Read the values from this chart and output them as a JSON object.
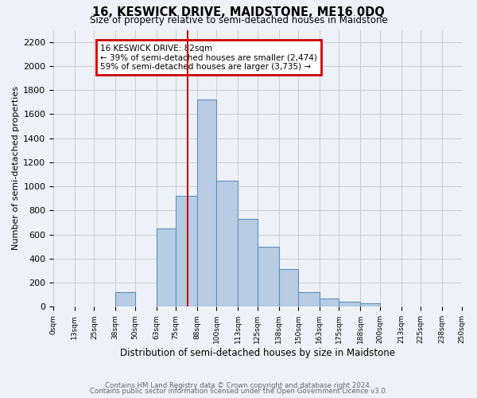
{
  "title": "16, KESWICK DRIVE, MAIDSTONE, ME16 0DQ",
  "subtitle": "Size of property relative to semi-detached houses in Maidstone",
  "xlabel": "Distribution of semi-detached houses by size in Maidstone",
  "ylabel": "Number of semi-detached properties",
  "footer_line1": "Contains HM Land Registry data © Crown copyright and database right 2024.",
  "footer_line2": "Contains public sector information licensed under the Open Government Licence v3.0.",
  "annotation_title": "16 KESWICK DRIVE: 82sqm",
  "annotation_line1": "← 39% of semi-detached houses are smaller (2,474)",
  "annotation_line2": "59% of semi-detached houses are larger (3,735) →",
  "property_value": 82,
  "bar_color": "#b8cce4",
  "bar_edge_color": "#5a8fc0",
  "highlight_line_color": "#cc0000",
  "annotation_box_edge": "#cc0000",
  "grid_color": "#cccccc",
  "background_color": "#eef2f8",
  "bin_edges": [
    0,
    13,
    25,
    38,
    50,
    63,
    75,
    88,
    100,
    113,
    125,
    138,
    150,
    163,
    175,
    188,
    200,
    213,
    225,
    238,
    250
  ],
  "bin_labels": [
    "0sqm",
    "13sqm",
    "25sqm",
    "38sqm",
    "50sqm",
    "63sqm",
    "75sqm",
    "88sqm",
    "100sqm",
    "113sqm",
    "125sqm",
    "138sqm",
    "150sqm",
    "163sqm",
    "175sqm",
    "188sqm",
    "200sqm",
    "213sqm",
    "225sqm",
    "238sqm",
    "250sqm"
  ],
  "bar_heights": [
    0,
    0,
    0,
    120,
    0,
    650,
    920,
    1720,
    1050,
    730,
    500,
    310,
    120,
    70,
    45,
    30,
    0,
    0,
    0,
    0
  ],
  "ylim": [
    0,
    2300
  ],
  "yticks": [
    0,
    200,
    400,
    600,
    800,
    1000,
    1200,
    1400,
    1600,
    1800,
    2000,
    2200
  ]
}
